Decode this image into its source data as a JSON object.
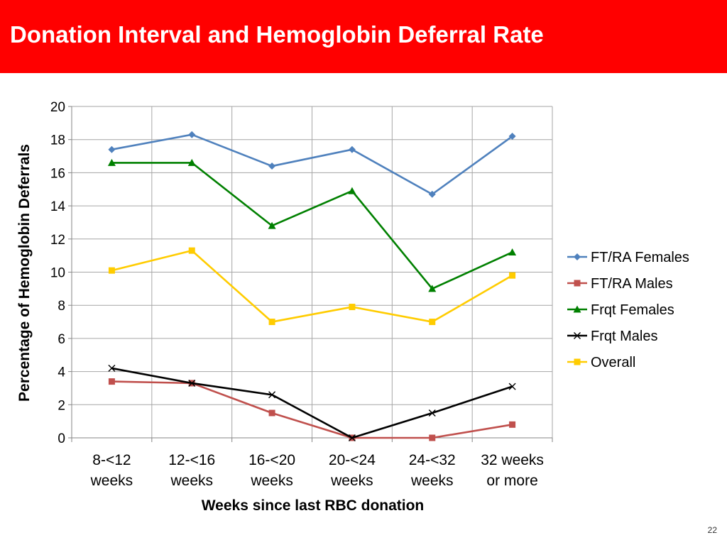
{
  "slide": {
    "title": "Donation Interval and Hemoglobin Deferral Rate",
    "page_number": "22",
    "title_bar_color": "#ff0000"
  },
  "chart_data": {
    "type": "line",
    "categories": [
      [
        "8-<12",
        "weeks"
      ],
      [
        "12-<16",
        "weeks"
      ],
      [
        "16-<20",
        "weeks"
      ],
      [
        "20-<24",
        "weeks"
      ],
      [
        "24-<32",
        "weeks"
      ],
      [
        "32 weeks",
        "or more"
      ]
    ],
    "xlabel": "Weeks since last RBC donation",
    "ylabel": "Percentage of Hemoglobin Deferrals",
    "ylim": [
      0,
      20
    ],
    "yticks": [
      0,
      2,
      4,
      6,
      8,
      10,
      12,
      14,
      16,
      18,
      20
    ],
    "grid": true,
    "legend_position": "right",
    "series": [
      {
        "name": "FT/RA Females",
        "color": "#4f81bd",
        "marker": "diamond",
        "values": [
          17.4,
          18.3,
          16.4,
          17.4,
          14.7,
          18.2
        ]
      },
      {
        "name": "FT/RA Males",
        "color": "#c0504d",
        "marker": "square",
        "values": [
          3.4,
          3.3,
          1.5,
          0,
          0,
          0.8
        ]
      },
      {
        "name": "Frqt Females",
        "color": "#008000",
        "marker": "triangle",
        "values": [
          16.6,
          16.6,
          12.8,
          14.9,
          9.0,
          11.2
        ]
      },
      {
        "name": "Frqt Males",
        "color": "#000000",
        "marker": "x",
        "values": [
          4.2,
          3.3,
          2.6,
          0,
          1.5,
          3.1
        ]
      },
      {
        "name": "Overall",
        "color": "#ffcc00",
        "marker": "square",
        "values": [
          10.1,
          11.3,
          7.0,
          7.9,
          7.0,
          9.8
        ]
      }
    ]
  }
}
